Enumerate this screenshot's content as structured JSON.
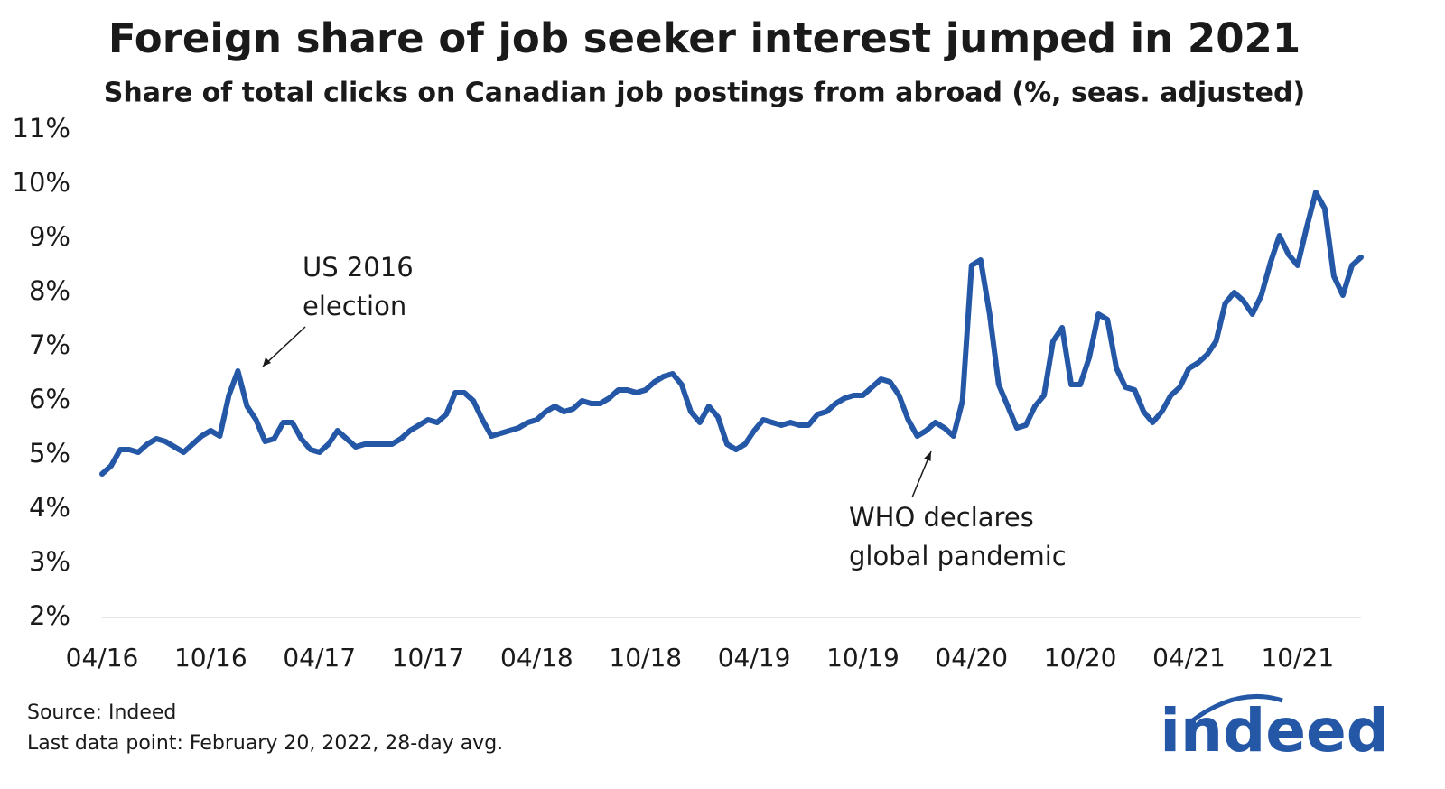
{
  "chart_data": {
    "type": "line",
    "title": "Foreign share of job seeker interest jumped in 2021",
    "subtitle": "Share of total clicks on Canadian job postings from abroad (%, seas. adjusted)",
    "categories": [
      "04/16",
      null,
      null,
      null,
      null,
      null,
      null,
      null,
      null,
      null,
      null,
      null,
      "10/16",
      null,
      null,
      null,
      null,
      null,
      null,
      null,
      null,
      null,
      null,
      null,
      "04/17",
      null,
      null,
      null,
      null,
      null,
      null,
      null,
      null,
      null,
      null,
      null,
      "10/17",
      null,
      null,
      null,
      null,
      null,
      null,
      null,
      null,
      null,
      null,
      null,
      "04/18",
      null,
      null,
      null,
      null,
      null,
      null,
      null,
      null,
      null,
      null,
      null,
      "10/18",
      null,
      null,
      null,
      null,
      null,
      null,
      null,
      null,
      null,
      null,
      null,
      "04/19",
      null,
      null,
      null,
      null,
      null,
      null,
      null,
      null,
      null,
      null,
      null,
      "10/19",
      null,
      null,
      null,
      null,
      null,
      null,
      null,
      null,
      null,
      null,
      null,
      "04/20",
      null,
      null,
      null,
      null,
      null,
      null,
      null,
      null,
      null,
      null,
      null,
      "10/20",
      null,
      null,
      null,
      null,
      null,
      null,
      null,
      null,
      null,
      null,
      null,
      "04/21",
      null,
      null,
      null,
      null,
      null,
      null,
      null,
      null,
      null,
      null,
      null,
      "10/21",
      null,
      null,
      null,
      null,
      null,
      null,
      null
    ],
    "values": [
      4.65,
      4.8,
      5.1,
      5.1,
      5.05,
      5.2,
      5.3,
      5.25,
      5.15,
      5.05,
      5.2,
      5.35,
      5.45,
      5.35,
      6.1,
      6.55,
      5.9,
      5.65,
      5.25,
      5.3,
      5.6,
      5.6,
      5.3,
      5.1,
      5.05,
      5.2,
      5.45,
      5.3,
      5.15,
      5.2,
      5.2,
      5.2,
      5.2,
      5.3,
      5.45,
      5.55,
      5.65,
      5.6,
      5.75,
      6.15,
      6.15,
      6.0,
      5.65,
      5.35,
      5.4,
      5.45,
      5.5,
      5.6,
      5.65,
      5.8,
      5.9,
      5.8,
      5.85,
      6.0,
      5.95,
      5.95,
      6.05,
      6.2,
      6.2,
      6.15,
      6.2,
      6.35,
      6.45,
      6.5,
      6.3,
      5.8,
      5.6,
      5.9,
      5.7,
      5.2,
      5.1,
      5.2,
      5.45,
      5.65,
      5.6,
      5.55,
      5.6,
      5.55,
      5.55,
      5.75,
      5.8,
      5.95,
      6.05,
      6.1,
      6.1,
      6.25,
      6.4,
      6.35,
      6.1,
      5.65,
      5.35,
      5.45,
      5.6,
      5.5,
      5.35,
      6.0,
      8.5,
      8.6,
      7.6,
      6.3,
      5.9,
      5.5,
      5.55,
      5.9,
      6.1,
      7.1,
      7.35,
      6.3,
      6.3,
      6.8,
      7.6,
      7.5,
      6.6,
      6.25,
      6.2,
      5.8,
      5.6,
      5.8,
      6.1,
      6.25,
      6.6,
      6.7,
      6.85,
      7.1,
      7.8,
      8.0,
      7.85,
      7.6,
      7.95,
      8.55,
      9.05,
      8.7,
      8.5,
      9.2,
      9.85,
      9.55,
      8.3,
      7.95,
      8.5,
      8.65
    ],
    "color": "#2557a7",
    "ylim": [
      2,
      11
    ],
    "yticks": [
      {
        "value": 2,
        "label": "2%"
      },
      {
        "value": 3,
        "label": "3%"
      },
      {
        "value": 4,
        "label": "4%"
      },
      {
        "value": 5,
        "label": "5%"
      },
      {
        "value": 6,
        "label": "6%"
      },
      {
        "value": 7,
        "label": "7%"
      },
      {
        "value": 8,
        "label": "8%"
      },
      {
        "value": 9,
        "label": "9%"
      },
      {
        "value": 10,
        "label": "10%"
      },
      {
        "value": 11,
        "label": "11%"
      }
    ],
    "grid": false,
    "annotations": [
      {
        "text": [
          "US 2016",
          "election"
        ]
      },
      {
        "text": [
          "WHO declares",
          "global pandemic"
        ]
      }
    ],
    "source": "Source: Indeed",
    "note": "Last data point: February 20, 2022, 28-day avg.",
    "logo": "indeed"
  }
}
